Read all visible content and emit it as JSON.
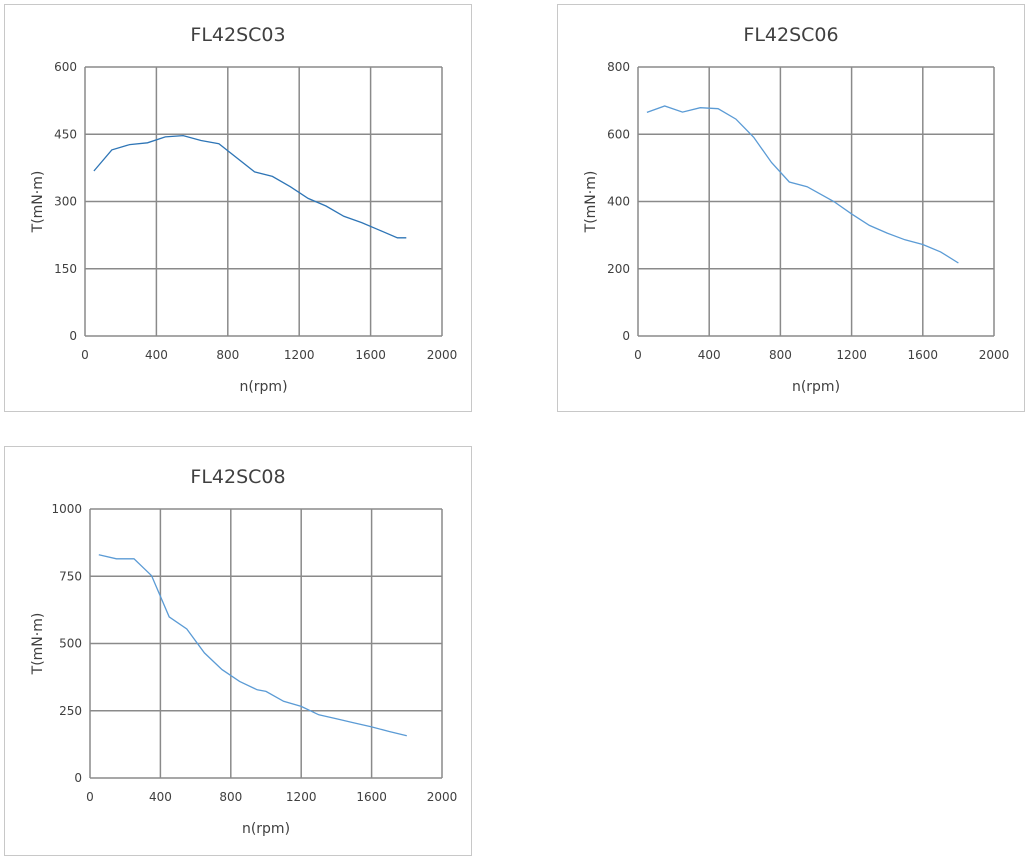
{
  "chart_data": [
    {
      "type": "line",
      "title": "FL42SC03",
      "xlabel": "n(rpm)",
      "ylabel": "T(mN·m)",
      "xlim": [
        0,
        2000
      ],
      "ylim": [
        0,
        600
      ],
      "xticks": [
        0,
        400,
        800,
        1200,
        1600,
        2000
      ],
      "yticks": [
        0,
        150,
        300,
        450,
        600
      ],
      "grid": true,
      "color": "#2e75b6",
      "x": [
        50,
        150,
        250,
        350,
        450,
        550,
        650,
        750,
        950,
        1050,
        1150,
        1250,
        1350,
        1450,
        1550,
        1650,
        1750,
        1800
      ],
      "y": [
        368,
        415,
        427,
        431,
        444,
        447,
        436,
        429,
        366,
        356,
        333,
        307,
        290,
        267,
        253,
        236,
        219,
        219
      ]
    },
    {
      "type": "line",
      "title": "FL42SC06",
      "xlabel": "n(rpm)",
      "ylabel": "T(mN·m)",
      "xlim": [
        0,
        2000
      ],
      "ylim": [
        0,
        800
      ],
      "xticks": [
        0,
        400,
        800,
        1200,
        1600,
        2000
      ],
      "yticks": [
        0,
        200,
        400,
        600,
        800
      ],
      "grid": true,
      "color": "#5b9bd5",
      "x": [
        50,
        150,
        250,
        350,
        450,
        550,
        650,
        750,
        850,
        950,
        1100,
        1200,
        1300,
        1400,
        1500,
        1600,
        1700,
        1800
      ],
      "y": [
        665,
        684,
        666,
        679,
        676,
        645,
        591,
        516,
        458,
        444,
        400,
        363,
        329,
        306,
        286,
        272,
        250,
        217
      ]
    },
    {
      "type": "line",
      "title": "FL42SC08",
      "xlabel": "n(rpm)",
      "ylabel": "T(mN·m)",
      "xlim": [
        0,
        2000
      ],
      "ylim": [
        0,
        1000
      ],
      "xticks": [
        0,
        400,
        800,
        1200,
        1600,
        2000
      ],
      "yticks": [
        0,
        250,
        500,
        750,
        1000
      ],
      "grid": true,
      "color": "#5b9bd5",
      "x": [
        50,
        150,
        250,
        350,
        450,
        550,
        650,
        750,
        850,
        950,
        1000,
        1100,
        1200,
        1300,
        1400,
        1500,
        1600,
        1700,
        1800
      ],
      "y": [
        830,
        815,
        815,
        752,
        599,
        554,
        465,
        403,
        359,
        328,
        322,
        285,
        266,
        235,
        220,
        205,
        190,
        173,
        157
      ]
    }
  ]
}
